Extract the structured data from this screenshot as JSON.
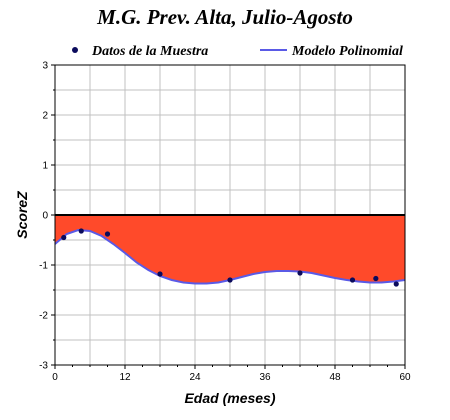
{
  "chart_data": {
    "type": "line",
    "title": "M.G. Prev. Alta, Julio-Agosto",
    "xlabel": "Edad (meses)",
    "ylabel": "ScoreZ",
    "xlim": [
      0,
      60
    ],
    "ylim": [
      -3,
      3
    ],
    "x_ticks": [
      "0",
      "12",
      "24",
      "36",
      "48",
      "60"
    ],
    "y_ticks": [
      "-3",
      "-2",
      "-1",
      "0",
      "1",
      "2",
      "3"
    ],
    "grid": true,
    "legend_position": "top",
    "colors": {
      "fill": "#ff4a2a",
      "model_line": "#5a5ae6",
      "sample_points": "#0b0b5c",
      "zero_line": "#000000",
      "grid": "#c0c0c0"
    },
    "series": [
      {
        "name": "Datos de la Muestra",
        "kind": "scatter",
        "x": [
          1.5,
          4.5,
          9,
          18,
          30,
          42,
          51,
          55,
          58.5
        ],
        "y": [
          -0.45,
          -0.32,
          -0.38,
          -1.18,
          -1.3,
          -1.16,
          -1.3,
          -1.27,
          -1.38
        ]
      },
      {
        "name": "Modelo Polinomial",
        "kind": "line",
        "x": [
          0,
          2,
          4,
          6,
          8,
          10,
          12,
          14,
          16,
          18,
          20,
          22,
          24,
          26,
          28,
          30,
          32,
          34,
          36,
          38,
          40,
          42,
          44,
          46,
          48,
          50,
          52,
          54,
          56,
          58,
          60
        ],
        "y": [
          -0.58,
          -0.38,
          -0.3,
          -0.32,
          -0.42,
          -0.58,
          -0.76,
          -0.95,
          -1.1,
          -1.22,
          -1.3,
          -1.35,
          -1.37,
          -1.37,
          -1.35,
          -1.3,
          -1.24,
          -1.18,
          -1.14,
          -1.12,
          -1.12,
          -1.13,
          -1.16,
          -1.21,
          -1.26,
          -1.3,
          -1.33,
          -1.35,
          -1.35,
          -1.33,
          -1.3
        ]
      }
    ]
  }
}
